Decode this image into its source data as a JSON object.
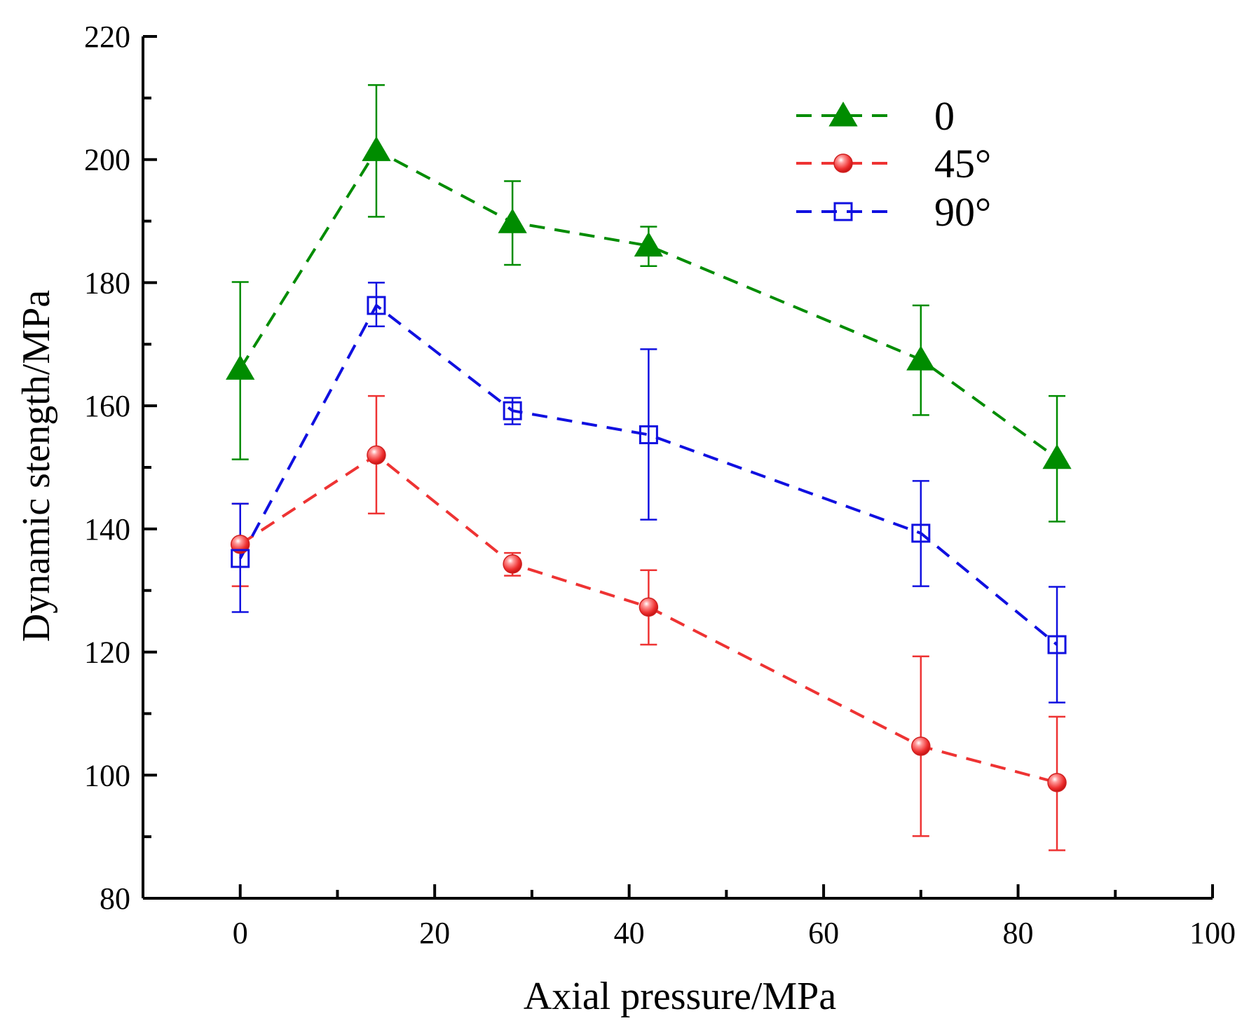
{
  "chart_data": {
    "type": "line",
    "xlabel": "Axial pressure/MPa",
    "ylabel": "Dynamic stength/MPa",
    "xlim": [
      -10,
      100
    ],
    "ylim": [
      80,
      220
    ],
    "xticks": [
      0,
      20,
      40,
      60,
      80,
      100
    ],
    "yticks": [
      80,
      100,
      120,
      140,
      160,
      180,
      200,
      220
    ],
    "grid": false,
    "legend_position": "top-right",
    "series": [
      {
        "name": "0",
        "color": "#008c00",
        "marker": "filled-triangle",
        "x": [
          0,
          14,
          28,
          42,
          70,
          84
        ],
        "y": [
          166,
          201.5,
          189.8,
          186,
          167.5,
          151.5
        ],
        "err_low": [
          151.3,
          190.7,
          182.9,
          182.7,
          158.5,
          141.2
        ],
        "err_high": [
          180.1,
          212.1,
          196.5,
          189.1,
          176.3,
          161.6
        ]
      },
      {
        "name": "45°",
        "color": "#ee3333",
        "marker": "filled-circle",
        "x": [
          0,
          14,
          28,
          42,
          70,
          84
        ],
        "y": [
          137.5,
          152,
          134.3,
          127.3,
          104.7,
          98.8
        ],
        "err_low": [
          130.7,
          142.5,
          132.4,
          121.2,
          90.1,
          87.8
        ],
        "err_high": [
          144.1,
          161.6,
          136.1,
          133.3,
          119.3,
          109.5
        ]
      },
      {
        "name": "90°",
        "color": "#1010e0",
        "marker": "open-square",
        "x": [
          0,
          14,
          28,
          42,
          70,
          84
        ],
        "y": [
          135.2,
          176.3,
          159.2,
          155.3,
          139.3,
          121.2
        ],
        "err_low": [
          126.5,
          172.9,
          157,
          141.5,
          130.7,
          111.8
        ],
        "err_high": [
          144.1,
          180,
          161.3,
          169.2,
          147.8,
          130.6
        ]
      }
    ]
  }
}
